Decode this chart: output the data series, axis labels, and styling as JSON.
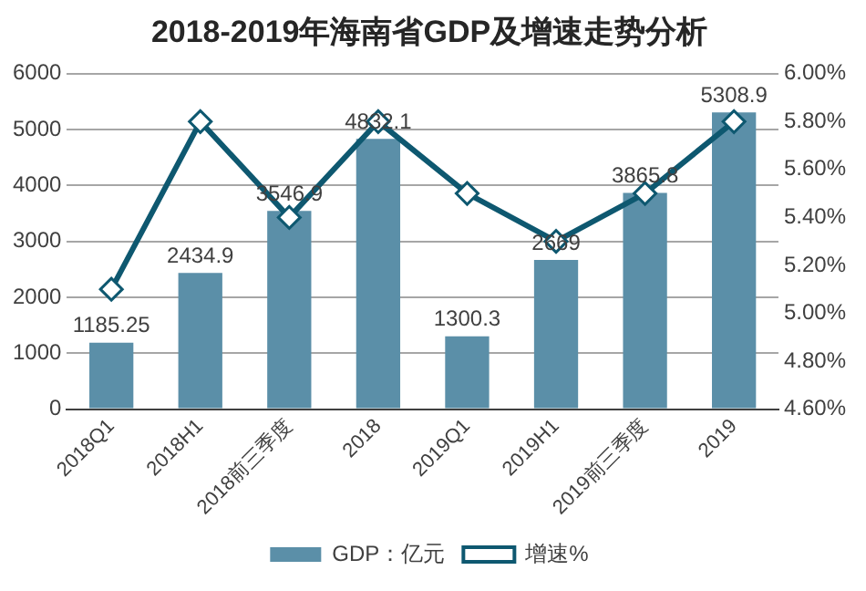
{
  "chart_data": {
    "type": "bar",
    "title": "2018-2019年海南省GDP及增速走势分析",
    "categories": [
      "2018Q1",
      "2018H1",
      "2018前三季度",
      "2018",
      "2019Q1",
      "2019H1",
      "2019前三季度",
      "2019"
    ],
    "series": [
      {
        "name": "GDP：亿元",
        "color": "#5b8fa8",
        "values": [
          1185.25,
          2434.9,
          3546.9,
          4832.1,
          1300.3,
          2669,
          3865.8,
          5308.9
        ],
        "value_labels": [
          "1185.25",
          "2434.9",
          "3546.9",
          "4832.1",
          "1300.3",
          "2669",
          "3865.8",
          "5308.9"
        ]
      },
      {
        "name": "增速%",
        "type": "line",
        "axis": "y2",
        "color": "#0e5870",
        "marker": "diamond",
        "values": [
          5.1,
          5.8,
          5.4,
          5.8,
          5.5,
          5.3,
          5.5,
          5.8
        ]
      }
    ],
    "ylim": [
      0,
      6000
    ],
    "yticks": [
      0,
      1000,
      2000,
      3000,
      4000,
      5000,
      6000
    ],
    "y2lim": [
      4.6,
      6.0
    ],
    "y2ticks": [
      {
        "value": 4.6,
        "label": "4.60%"
      },
      {
        "value": 4.8,
        "label": "4.80%"
      },
      {
        "value": 5.0,
        "label": "5.00%"
      },
      {
        "value": 5.2,
        "label": "5.20%"
      },
      {
        "value": 5.4,
        "label": "5.40%"
      },
      {
        "value": 5.6,
        "label": "5.60%"
      },
      {
        "value": 5.8,
        "label": "5.80%"
      },
      {
        "value": 6.0,
        "label": "6.00%"
      }
    ],
    "grid": "y",
    "legend": "bottom"
  }
}
